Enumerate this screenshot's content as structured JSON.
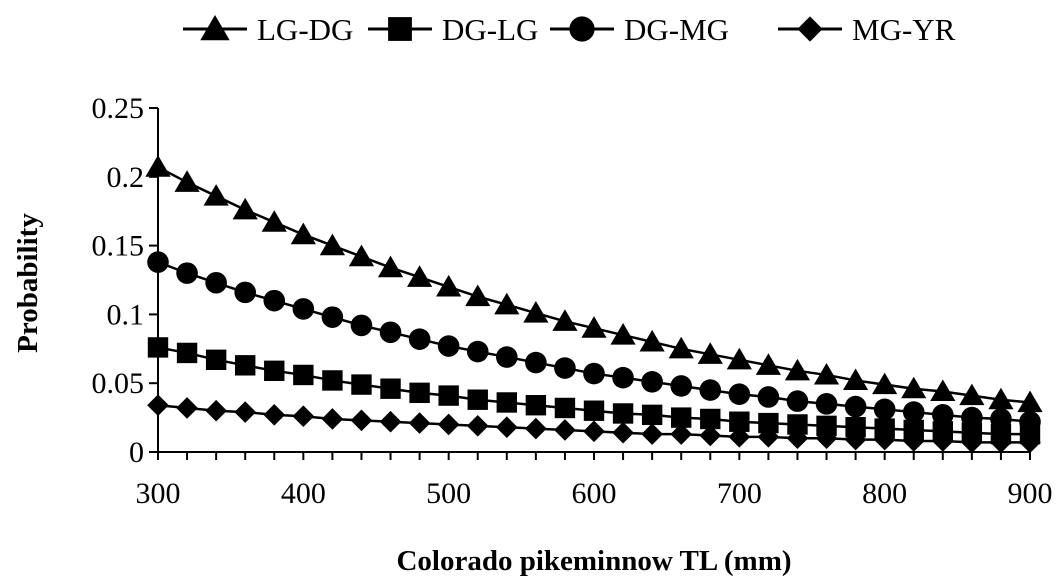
{
  "chart_data": {
    "type": "line",
    "title": "",
    "xlabel": "Colorado pikeminnow TL (mm)",
    "ylabel": "Probability",
    "xlim": [
      300,
      900
    ],
    "ylim": [
      0,
      0.25
    ],
    "x_ticks": [
      "300",
      "400",
      "500",
      "600",
      "700",
      "800",
      "900"
    ],
    "y_ticks": [
      "0",
      "0.05",
      "0.1",
      "0.15",
      "0.2",
      "0.25"
    ],
    "grid": false,
    "legend_position": "top",
    "x": [
      300,
      320,
      340,
      360,
      380,
      400,
      420,
      440,
      460,
      480,
      500,
      520,
      540,
      560,
      580,
      600,
      620,
      640,
      660,
      680,
      700,
      720,
      740,
      760,
      780,
      800,
      820,
      840,
      860,
      880,
      900
    ],
    "series": [
      {
        "name": "LG-DG",
        "marker": "triangle",
        "values": [
          0.207,
          0.196,
          0.186,
          0.176,
          0.167,
          0.158,
          0.15,
          0.142,
          0.134,
          0.127,
          0.12,
          0.113,
          0.107,
          0.101,
          0.095,
          0.09,
          0.085,
          0.08,
          0.075,
          0.071,
          0.067,
          0.063,
          0.059,
          0.056,
          0.052,
          0.049,
          0.046,
          0.044,
          0.041,
          0.038,
          0.036
        ]
      },
      {
        "name": "DG-LG",
        "marker": "square",
        "values": [
          0.076,
          0.072,
          0.067,
          0.063,
          0.059,
          0.056,
          0.052,
          0.049,
          0.046,
          0.043,
          0.041,
          0.038,
          0.036,
          0.034,
          0.032,
          0.03,
          0.028,
          0.027,
          0.025,
          0.024,
          0.022,
          0.021,
          0.02,
          0.019,
          0.018,
          0.017,
          0.016,
          0.015,
          0.014,
          0.013,
          0.013
        ]
      },
      {
        "name": "DG-MG",
        "marker": "circle",
        "values": [
          0.138,
          0.13,
          0.123,
          0.116,
          0.11,
          0.104,
          0.098,
          0.092,
          0.087,
          0.082,
          0.077,
          0.073,
          0.069,
          0.065,
          0.061,
          0.057,
          0.054,
          0.051,
          0.048,
          0.045,
          0.042,
          0.04,
          0.037,
          0.035,
          0.033,
          0.031,
          0.029,
          0.027,
          0.025,
          0.024,
          0.022
        ]
      },
      {
        "name": "MG-YR",
        "marker": "diamond",
        "values": [
          0.034,
          0.032,
          0.03,
          0.029,
          0.027,
          0.026,
          0.024,
          0.023,
          0.022,
          0.021,
          0.02,
          0.019,
          0.018,
          0.017,
          0.016,
          0.015,
          0.014,
          0.013,
          0.013,
          0.012,
          0.011,
          0.011,
          0.01,
          0.01,
          0.009,
          0.009,
          0.008,
          0.008,
          0.007,
          0.007,
          0.007
        ]
      }
    ]
  }
}
